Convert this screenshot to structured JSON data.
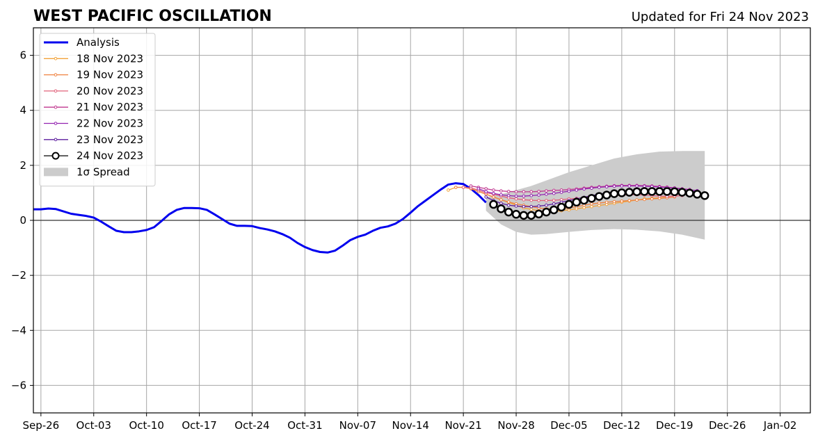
{
  "chart_data": {
    "type": "line",
    "title": "WEST PACIFIC OSCILLATION",
    "subtitle": "Updated for Fri 24 Nov 2023",
    "xlabel": "",
    "ylabel": "",
    "x_range": [
      "2023-09-25",
      "2024-01-06"
    ],
    "ylim": [
      -7,
      7
    ],
    "yticks": [
      -6,
      -4,
      -2,
      0,
      2,
      4,
      6
    ],
    "ytick_labels": [
      "−6",
      "−4",
      "−2",
      "0",
      "2",
      "4",
      "6"
    ],
    "xticks": [
      "2023-09-26",
      "2023-10-03",
      "2023-10-10",
      "2023-10-17",
      "2023-10-24",
      "2023-10-31",
      "2023-11-07",
      "2023-11-14",
      "2023-11-21",
      "2023-11-28",
      "2023-12-05",
      "2023-12-12",
      "2023-12-19",
      "2023-12-26",
      "2024-01-02"
    ],
    "xtick_labels": [
      "Sep-26",
      "Oct-03",
      "Oct-10",
      "Oct-17",
      "Oct-24",
      "Oct-31",
      "Nov-07",
      "Nov-14",
      "Nov-21",
      "Nov-28",
      "Dec-05",
      "Dec-12",
      "Dec-19",
      "Dec-26",
      "Jan-02"
    ],
    "grid": true,
    "zero_line": 0,
    "legend_position": "upper-left",
    "spread_label": "1σ Spread",
    "spread": {
      "color": "#cccccc",
      "x": [
        "2023-11-24",
        "2023-11-26",
        "2023-11-28",
        "2023-11-30",
        "2023-12-02",
        "2023-12-05",
        "2023-12-08",
        "2023-12-11",
        "2023-12-14",
        "2023-12-17",
        "2023-12-20",
        "2023-12-23"
      ],
      "upper": [
        0.85,
        0.95,
        1.1,
        1.25,
        1.45,
        1.75,
        2.0,
        2.25,
        2.4,
        2.5,
        2.52,
        2.52
      ],
      "lower": [
        0.35,
        -0.15,
        -0.42,
        -0.52,
        -0.5,
        -0.42,
        -0.35,
        -0.32,
        -0.34,
        -0.4,
        -0.52,
        -0.7
      ]
    },
    "series": [
      {
        "name": "Analysis",
        "color": "#0000ee",
        "x": [
          "2023-09-25",
          "2023-09-26",
          "2023-09-27",
          "2023-09-28",
          "2023-09-30",
          "2023-10-01",
          "2023-10-02",
          "2023-10-03",
          "2023-10-04",
          "2023-10-05",
          "2023-10-06",
          "2023-10-07",
          "2023-10-08",
          "2023-10-09",
          "2023-10-10",
          "2023-10-11",
          "2023-10-12",
          "2023-10-13",
          "2023-10-14",
          "2023-10-15",
          "2023-10-16",
          "2023-10-17",
          "2023-10-18",
          "2023-10-19",
          "2023-10-20",
          "2023-10-21",
          "2023-10-22",
          "2023-10-23",
          "2023-10-24",
          "2023-10-25",
          "2023-10-26",
          "2023-10-27",
          "2023-10-28",
          "2023-10-29",
          "2023-10-30",
          "2023-10-31",
          "2023-11-01",
          "2023-11-02",
          "2023-11-03",
          "2023-11-04",
          "2023-11-05",
          "2023-11-06",
          "2023-11-07",
          "2023-11-08",
          "2023-11-09",
          "2023-11-10",
          "2023-11-11",
          "2023-11-12",
          "2023-11-13",
          "2023-11-14",
          "2023-11-15",
          "2023-11-16",
          "2023-11-17",
          "2023-11-18",
          "2023-11-19",
          "2023-11-20",
          "2023-11-21",
          "2023-11-22",
          "2023-11-23",
          "2023-11-24"
        ],
        "values": [
          0.4,
          0.4,
          0.43,
          0.41,
          0.24,
          0.2,
          0.16,
          0.1,
          -0.05,
          -0.22,
          -0.38,
          -0.43,
          -0.43,
          -0.4,
          -0.35,
          -0.25,
          -0.02,
          0.22,
          0.38,
          0.45,
          0.45,
          0.44,
          0.38,
          0.22,
          0.05,
          -0.12,
          -0.2,
          -0.2,
          -0.21,
          -0.28,
          -0.33,
          -0.4,
          -0.5,
          -0.63,
          -0.82,
          -0.97,
          -1.08,
          -1.15,
          -1.17,
          -1.1,
          -0.92,
          -0.72,
          -0.6,
          -0.52,
          -0.38,
          -0.27,
          -0.22,
          -0.12,
          0.05,
          0.28,
          0.52,
          0.72,
          0.92,
          1.12,
          1.3,
          1.35,
          1.32,
          1.15,
          0.92,
          0.65
        ]
      },
      {
        "name": "18 Nov 2023",
        "color": "#f2a33a",
        "x": [
          "2023-11-19",
          "2023-11-20",
          "2023-11-21",
          "2023-11-22",
          "2023-11-23",
          "2023-11-24",
          "2023-11-25",
          "2023-11-26",
          "2023-11-27",
          "2023-11-28",
          "2023-11-29",
          "2023-11-30",
          "2023-12-01",
          "2023-12-02",
          "2023-12-03",
          "2023-12-04",
          "2023-12-05",
          "2023-12-06",
          "2023-12-07",
          "2023-12-08",
          "2023-12-09",
          "2023-12-10",
          "2023-12-11",
          "2023-12-12",
          "2023-12-13",
          "2023-12-14",
          "2023-12-15",
          "2023-12-16",
          "2023-12-17",
          "2023-12-18"
        ],
        "values": [
          1.1,
          1.2,
          1.2,
          1.15,
          1.05,
          0.95,
          0.85,
          0.75,
          0.65,
          0.55,
          0.45,
          0.4,
          0.35,
          0.32,
          0.32,
          0.35,
          0.38,
          0.42,
          0.46,
          0.5,
          0.54,
          0.58,
          0.62,
          0.66,
          0.7,
          0.74,
          0.78,
          0.8,
          0.82,
          0.85
        ]
      },
      {
        "name": "19 Nov 2023",
        "color": "#ef8240",
        "x": [
          "2023-11-20",
          "2023-11-21",
          "2023-11-22",
          "2023-11-23",
          "2023-11-24",
          "2023-11-25",
          "2023-11-26",
          "2023-11-27",
          "2023-11-28",
          "2023-11-29",
          "2023-11-30",
          "2023-12-01",
          "2023-12-02",
          "2023-12-03",
          "2023-12-04",
          "2023-12-05",
          "2023-12-06",
          "2023-12-07",
          "2023-12-08",
          "2023-12-09",
          "2023-12-10",
          "2023-12-11",
          "2023-12-12",
          "2023-12-13",
          "2023-12-14",
          "2023-12-15",
          "2023-12-16",
          "2023-12-17",
          "2023-12-18",
          "2023-12-19"
        ],
        "values": [
          1.2,
          1.2,
          1.15,
          1.05,
          0.95,
          0.85,
          0.75,
          0.67,
          0.6,
          0.55,
          0.5,
          0.45,
          0.42,
          0.4,
          0.42,
          0.45,
          0.5,
          0.55,
          0.6,
          0.63,
          0.66,
          0.68,
          0.7,
          0.72,
          0.74,
          0.76,
          0.78,
          0.8,
          0.82,
          0.85
        ]
      },
      {
        "name": "20 Nov 2023",
        "color": "#e0607a",
        "x": [
          "2023-11-21",
          "2023-11-22",
          "2023-11-23",
          "2023-11-24",
          "2023-11-25",
          "2023-11-26",
          "2023-11-27",
          "2023-11-28",
          "2023-11-29",
          "2023-11-30",
          "2023-12-01",
          "2023-12-02",
          "2023-12-03",
          "2023-12-04",
          "2023-12-05",
          "2023-12-06",
          "2023-12-07",
          "2023-12-08",
          "2023-12-09",
          "2023-12-10",
          "2023-12-11",
          "2023-12-12",
          "2023-12-13",
          "2023-12-14",
          "2023-12-15",
          "2023-12-16",
          "2023-12-17",
          "2023-12-18",
          "2023-12-19",
          "2023-12-20"
        ],
        "values": [
          1.2,
          1.18,
          1.1,
          1.0,
          0.95,
          0.88,
          0.82,
          0.78,
          0.75,
          0.73,
          0.72,
          0.72,
          0.73,
          0.75,
          0.78,
          0.8,
          0.82,
          0.84,
          0.86,
          0.88,
          0.9,
          0.92,
          0.93,
          0.93,
          0.92,
          0.9,
          0.88,
          0.87,
          0.88,
          0.9
        ]
      },
      {
        "name": "21 Nov 2023",
        "color": "#c0368f",
        "x": [
          "2023-11-22",
          "2023-11-23",
          "2023-11-24",
          "2023-11-25",
          "2023-11-26",
          "2023-11-27",
          "2023-11-28",
          "2023-11-29",
          "2023-11-30",
          "2023-12-01",
          "2023-12-02",
          "2023-12-03",
          "2023-12-04",
          "2023-12-05",
          "2023-12-06",
          "2023-12-07",
          "2023-12-08",
          "2023-12-09",
          "2023-12-10",
          "2023-12-11",
          "2023-12-12",
          "2023-12-13",
          "2023-12-14",
          "2023-12-15",
          "2023-12-16",
          "2023-12-17",
          "2023-12-18",
          "2023-12-19",
          "2023-12-20",
          "2023-12-21"
        ],
        "values": [
          1.25,
          1.2,
          1.15,
          1.1,
          1.07,
          1.05,
          1.04,
          1.04,
          1.04,
          1.05,
          1.07,
          1.09,
          1.1,
          1.12,
          1.14,
          1.17,
          1.2,
          1.22,
          1.24,
          1.26,
          1.27,
          1.27,
          1.27,
          1.26,
          1.25,
          1.23,
          1.21,
          1.18,
          1.15,
          1.12
        ]
      },
      {
        "name": "22 Nov 2023",
        "color": "#9222b0",
        "x": [
          "2023-11-23",
          "2023-11-24",
          "2023-11-25",
          "2023-11-26",
          "2023-11-27",
          "2023-11-28",
          "2023-11-29",
          "2023-11-30",
          "2023-12-01",
          "2023-12-02",
          "2023-12-03",
          "2023-12-04",
          "2023-12-05",
          "2023-12-06",
          "2023-12-07",
          "2023-12-08",
          "2023-12-09",
          "2023-12-10",
          "2023-12-11",
          "2023-12-12",
          "2023-12-13",
          "2023-12-14",
          "2023-12-15",
          "2023-12-16",
          "2023-12-17",
          "2023-12-18",
          "2023-12-19",
          "2023-12-20",
          "2023-12-21",
          "2023-12-22"
        ],
        "values": [
          1.15,
          1.05,
          0.98,
          0.93,
          0.9,
          0.88,
          0.88,
          0.9,
          0.92,
          0.95,
          0.98,
          1.02,
          1.06,
          1.1,
          1.14,
          1.17,
          1.2,
          1.22,
          1.24,
          1.25,
          1.25,
          1.25,
          1.24,
          1.23,
          1.21,
          1.19,
          1.17,
          1.14,
          1.11,
          1.08
        ]
      },
      {
        "name": "23 Nov 2023",
        "color": "#5c1c9e",
        "x": [
          "2023-11-24",
          "2023-11-25",
          "2023-11-26",
          "2023-11-27",
          "2023-11-28",
          "2023-11-29",
          "2023-11-30",
          "2023-12-01",
          "2023-12-02",
          "2023-12-03",
          "2023-12-04",
          "2023-12-05",
          "2023-12-06",
          "2023-12-07",
          "2023-12-08",
          "2023-12-09",
          "2023-12-10",
          "2023-12-11",
          "2023-12-12",
          "2023-12-13",
          "2023-12-14",
          "2023-12-15",
          "2023-12-16",
          "2023-12-17",
          "2023-12-18",
          "2023-12-19",
          "2023-12-20",
          "2023-12-21",
          "2023-12-22"
        ],
        "values": [
          0.85,
          0.72,
          0.62,
          0.55,
          0.52,
          0.5,
          0.5,
          0.52,
          0.55,
          0.6,
          0.66,
          0.72,
          0.78,
          0.84,
          0.9,
          0.95,
          1.0,
          1.03,
          1.06,
          1.08,
          1.1,
          1.11,
          1.12,
          1.12,
          1.11,
          1.1,
          1.08,
          1.06,
          1.03
        ]
      },
      {
        "name": "24 Nov 2023",
        "color": "#000000",
        "marker": "large-hollow-circle",
        "x": [
          "2023-11-25",
          "2023-11-26",
          "2023-11-27",
          "2023-11-28",
          "2023-11-29",
          "2023-11-30",
          "2023-12-01",
          "2023-12-02",
          "2023-12-03",
          "2023-12-04",
          "2023-12-05",
          "2023-12-06",
          "2023-12-07",
          "2023-12-08",
          "2023-12-09",
          "2023-12-10",
          "2023-12-11",
          "2023-12-12",
          "2023-12-13",
          "2023-12-14",
          "2023-12-15",
          "2023-12-16",
          "2023-12-17",
          "2023-12-18",
          "2023-12-19",
          "2023-12-20",
          "2023-12-21",
          "2023-12-22",
          "2023-12-23"
        ],
        "values": [
          0.58,
          0.42,
          0.3,
          0.22,
          0.18,
          0.18,
          0.23,
          0.3,
          0.38,
          0.48,
          0.58,
          0.66,
          0.73,
          0.8,
          0.87,
          0.92,
          0.97,
          1.0,
          1.02,
          1.04,
          1.05,
          1.05,
          1.05,
          1.05,
          1.04,
          1.02,
          0.99,
          0.95,
          0.9
        ]
      }
    ]
  }
}
